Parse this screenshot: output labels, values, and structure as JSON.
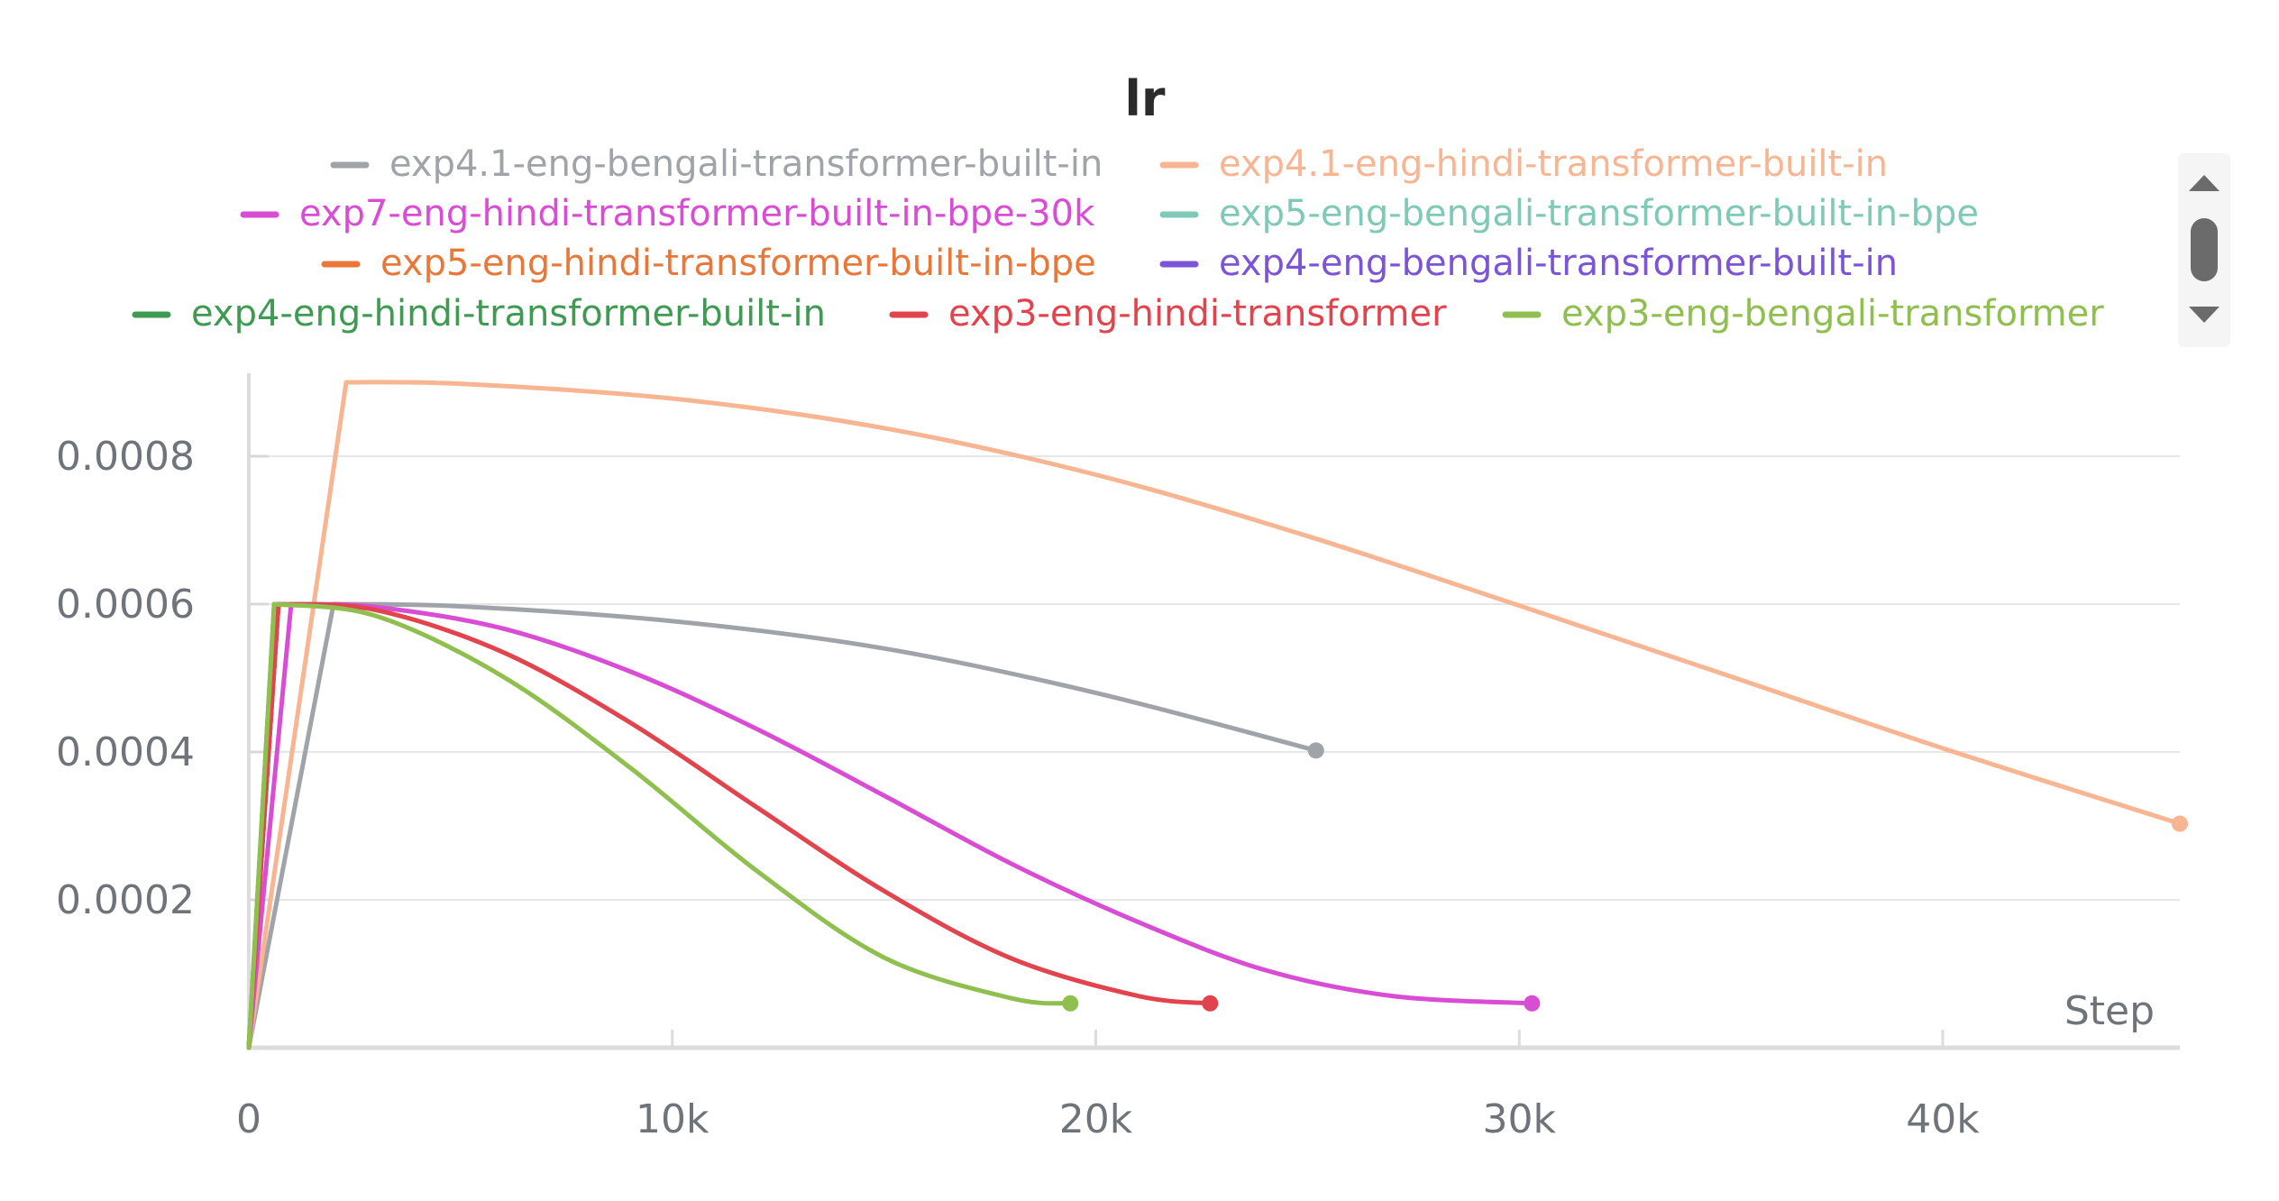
{
  "chart_data": {
    "type": "line",
    "title": "lr",
    "xlabel": "Step",
    "ylabel": "",
    "xlim": [
      0,
      45600
    ],
    "ylim": [
      0,
      0.0009
    ],
    "x_ticks": [
      {
        "value": 0,
        "label": "0"
      },
      {
        "value": 10000,
        "label": "10k"
      },
      {
        "value": 20000,
        "label": "20k"
      },
      {
        "value": 30000,
        "label": "30k"
      },
      {
        "value": 40000,
        "label": "40k"
      }
    ],
    "y_ticks": [
      {
        "value": 0.0002,
        "label": "0.0002"
      },
      {
        "value": 0.0004,
        "label": "0.0004"
      },
      {
        "value": 0.0006,
        "label": "0.0006"
      },
      {
        "value": 0.0008,
        "label": "0.0008"
      }
    ],
    "grid": true,
    "legend_position": "top",
    "series": [
      {
        "name": "exp4.1-eng-bengali-transformer-built-in",
        "color": "#a0a4a9",
        "x": [
          0,
          2000,
          5000,
          10000,
          15000,
          20000,
          25200
        ],
        "y": [
          0,
          0.0006,
          0.000597,
          0.000577,
          0.00054,
          0.00048,
          0.000402
        ],
        "end_marker": true
      },
      {
        "name": "exp4.1-eng-hindi-transformer-built-in",
        "color": "#f7b592",
        "x": [
          0,
          2300,
          5000,
          10000,
          15000,
          20000,
          25000,
          30000,
          35000,
          40000,
          45600
        ],
        "y": [
          0,
          0.0009,
          0.000898,
          0.000878,
          0.000838,
          0.000775,
          0.000692,
          0.000598,
          0.000502,
          0.000405,
          0.000303
        ],
        "end_marker": true
      },
      {
        "name": "exp7-eng-hindi-transformer-built-in-bpe-30k",
        "color": "#d94cd4",
        "x": [
          0,
          1000,
          3000,
          6000,
          9000,
          12000,
          15000,
          18000,
          21000,
          24000,
          27000,
          30300
        ],
        "y": [
          0,
          0.0006,
          0.000596,
          0.000567,
          0.000509,
          0.000431,
          0.000341,
          0.000249,
          0.00017,
          0.000105,
          7e-05,
          6e-05
        ],
        "end_marker": true
      },
      {
        "name": "exp5-eng-bengali-transformer-built-in-bpe",
        "color": "#7fcab7",
        "x": [
          0,
          700
        ],
        "y": [
          0,
          0.0006
        ],
        "end_marker": false
      },
      {
        "name": "exp5-eng-hindi-transformer-built-in-bpe",
        "color": "#e8783a",
        "x": [
          0,
          700
        ],
        "y": [
          0,
          0.0006
        ],
        "end_marker": false
      },
      {
        "name": "exp4-eng-bengali-transformer-built-in",
        "color": "#7c55d6",
        "x": [
          0,
          700
        ],
        "y": [
          0,
          0.0006
        ],
        "end_marker": false
      },
      {
        "name": "exp4-eng-hindi-transformer-built-in",
        "color": "#3f9a52",
        "x": [
          0,
          600
        ],
        "y": [
          0,
          0.0006
        ],
        "end_marker": false
      },
      {
        "name": "exp3-eng-hindi-transformer",
        "color": "#e2444d",
        "x": [
          0,
          700,
          3000,
          6000,
          9000,
          12000,
          15000,
          18000,
          21000,
          22700
        ],
        "y": [
          0,
          0.0006,
          0.000592,
          0.000535,
          0.00044,
          0.000325,
          0.000212,
          0.000121,
          7e-05,
          6e-05
        ],
        "end_marker": true
      },
      {
        "name": "exp3-eng-bengali-transformer",
        "color": "#8fbf4e",
        "x": [
          0,
          600,
          3000,
          6000,
          9000,
          12000,
          15000,
          18000,
          19400
        ],
        "y": [
          0,
          0.0006,
          0.000584,
          0.000502,
          0.000379,
          0.000239,
          0.000122,
          6.7e-05,
          6e-05
        ],
        "end_marker": true
      }
    ]
  },
  "legend_controls": {
    "scroll_up_icon": "triangle-up-icon",
    "scroll_thumb_icon": "scroll-thumb",
    "scroll_down_icon": "triangle-down-icon"
  }
}
